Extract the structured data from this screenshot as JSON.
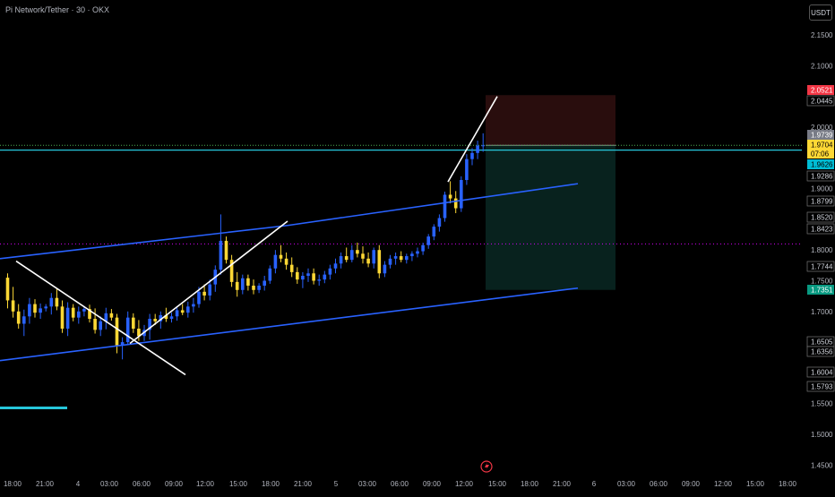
{
  "header": {
    "title": "Pi Network/Tether · 30 · OKX",
    "currency": "USDT"
  },
  "colors": {
    "up": "#2962ff",
    "down": "#fdd835",
    "channel": "#2962ff",
    "trendline": "#ffffff",
    "current_line": "#26c6da",
    "dotted_level": "#d500f9",
    "stop_zone": "#2b0e0e",
    "target_zone": "#082420",
    "stop_badge": "#f23645",
    "current_badge": "#fdd835",
    "cyan_badge": "#00bcd4",
    "teal_badge": "#089981",
    "grey_badge": "#787b86"
  },
  "chart_data": {
    "type": "candlestick",
    "y_ticks": [
      "2.1500",
      "2.1000",
      "2.0000",
      "1.9000",
      "1.8000",
      "1.7500",
      "1.7000",
      "1.5500",
      "1.5000",
      "1.4500"
    ],
    "x_ticks": [
      "18:00",
      "21:00",
      "4",
      "03:00",
      "06:00",
      "09:00",
      "12:00",
      "15:00",
      "18:00",
      "21:00",
      "5",
      "03:00",
      "06:00",
      "09:00",
      "12:00",
      "15:00",
      "18:00",
      "21:00",
      "6",
      "03:00",
      "06:00",
      "09:00",
      "12:00",
      "15:00",
      "18:00"
    ],
    "price_labels": [
      {
        "value": "2.0521",
        "style": "stop"
      },
      {
        "value": "2.0445",
        "style": "plain"
      },
      {
        "value": "1.9739",
        "style": "grey"
      },
      {
        "value": "1.9704",
        "style": "current"
      },
      {
        "value": "07:06",
        "style": "current"
      },
      {
        "value": "1.9626",
        "style": "cyan"
      },
      {
        "value": "1.9286",
        "style": "plain"
      },
      {
        "value": "1.8799",
        "style": "plain"
      },
      {
        "value": "1.8520",
        "style": "plain"
      },
      {
        "value": "1.8423",
        "style": "plain"
      },
      {
        "value": "1.7744",
        "style": "plain"
      },
      {
        "value": "1.7351",
        "style": "teal"
      },
      {
        "value": "1.6505",
        "style": "plain"
      },
      {
        "value": "1.6356",
        "style": "plain"
      },
      {
        "value": "1.6004",
        "style": "plain"
      },
      {
        "value": "1.5793",
        "style": "plain"
      }
    ],
    "ohlc": [
      [
        1.755,
        1.762,
        1.705,
        1.718
      ],
      [
        1.718,
        1.74,
        1.69,
        1.7
      ],
      [
        1.7,
        1.712,
        1.672,
        1.68
      ],
      [
        1.68,
        1.703,
        1.66,
        1.692
      ],
      [
        1.692,
        1.722,
        1.68,
        1.712
      ],
      [
        1.712,
        1.72,
        1.69,
        1.698
      ],
      [
        1.698,
        1.713,
        1.688,
        1.705
      ],
      [
        1.705,
        1.712,
        1.7,
        1.708
      ],
      [
        1.708,
        1.73,
        1.695,
        1.722
      ],
      [
        1.722,
        1.738,
        1.702,
        1.708
      ],
      [
        1.708,
        1.718,
        1.665,
        1.672
      ],
      [
        1.672,
        1.715,
        1.66,
        1.706
      ],
      [
        1.706,
        1.712,
        1.684,
        1.69
      ],
      [
        1.69,
        1.708,
        1.68,
        1.7
      ],
      [
        1.7,
        1.709,
        1.692,
        1.704
      ],
      [
        1.704,
        1.711,
        1.682,
        1.688
      ],
      [
        1.688,
        1.705,
        1.664,
        1.67
      ],
      [
        1.67,
        1.692,
        1.66,
        1.684
      ],
      [
        1.684,
        1.706,
        1.671,
        1.697
      ],
      [
        1.697,
        1.704,
        1.685,
        1.69
      ],
      [
        1.69,
        1.696,
        1.632,
        1.645
      ],
      [
        1.645,
        1.658,
        1.622,
        1.65
      ],
      [
        1.65,
        1.7,
        1.645,
        1.69
      ],
      [
        1.69,
        1.697,
        1.665,
        1.672
      ],
      [
        1.672,
        1.686,
        1.652,
        1.66
      ],
      [
        1.66,
        1.678,
        1.652,
        1.67
      ],
      [
        1.67,
        1.696,
        1.654,
        1.688
      ],
      [
        1.688,
        1.696,
        1.678,
        1.684
      ],
      [
        1.684,
        1.7,
        1.672,
        1.694
      ],
      [
        1.694,
        1.706,
        1.683,
        1.688
      ],
      [
        1.688,
        1.698,
        1.682,
        1.692
      ],
      [
        1.692,
        1.706,
        1.685,
        1.702
      ],
      [
        1.702,
        1.712,
        1.694,
        1.698
      ],
      [
        1.698,
        1.716,
        1.69,
        1.708
      ],
      [
        1.708,
        1.722,
        1.698,
        1.712
      ],
      [
        1.712,
        1.74,
        1.706,
        1.732
      ],
      [
        1.732,
        1.744,
        1.718,
        1.726
      ],
      [
        1.726,
        1.752,
        1.718,
        1.744
      ],
      [
        1.744,
        1.775,
        1.732,
        1.768
      ],
      [
        1.768,
        1.858,
        1.76,
        1.815
      ],
      [
        1.815,
        1.822,
        1.778,
        1.784
      ],
      [
        1.784,
        1.792,
        1.74,
        1.748
      ],
      [
        1.748,
        1.764,
        1.724,
        1.735
      ],
      [
        1.735,
        1.76,
        1.728,
        1.754
      ],
      [
        1.754,
        1.76,
        1.734,
        1.742
      ],
      [
        1.742,
        1.752,
        1.728,
        1.735
      ],
      [
        1.735,
        1.746,
        1.73,
        1.742
      ],
      [
        1.742,
        1.758,
        1.734,
        1.75
      ],
      [
        1.75,
        1.775,
        1.745,
        1.77
      ],
      [
        1.77,
        1.8,
        1.762,
        1.792
      ],
      [
        1.792,
        1.808,
        1.78,
        1.786
      ],
      [
        1.786,
        1.796,
        1.768,
        1.776
      ],
      [
        1.776,
        1.788,
        1.756,
        1.764
      ],
      [
        1.764,
        1.772,
        1.745,
        1.752
      ],
      [
        1.752,
        1.764,
        1.738,
        1.758
      ],
      [
        1.758,
        1.77,
        1.748,
        1.762
      ],
      [
        1.762,
        1.77,
        1.744,
        1.75
      ],
      [
        1.75,
        1.76,
        1.742,
        1.752
      ],
      [
        1.752,
        1.766,
        1.746,
        1.76
      ],
      [
        1.76,
        1.776,
        1.752,
        1.77
      ],
      [
        1.77,
        1.786,
        1.762,
        1.778
      ],
      [
        1.778,
        1.796,
        1.77,
        1.79
      ],
      [
        1.79,
        1.804,
        1.78,
        1.784
      ],
      [
        1.784,
        1.808,
        1.78,
        1.8
      ],
      [
        1.8,
        1.812,
        1.788,
        1.794
      ],
      [
        1.794,
        1.806,
        1.778,
        1.786
      ],
      [
        1.786,
        1.796,
        1.772,
        1.778
      ],
      [
        1.778,
        1.804,
        1.77,
        1.8
      ],
      [
        1.8,
        1.808,
        1.754,
        1.762
      ],
      [
        1.762,
        1.782,
        1.756,
        1.776
      ],
      [
        1.776,
        1.792,
        1.77,
        1.786
      ],
      [
        1.786,
        1.796,
        1.776,
        1.79
      ],
      [
        1.79,
        1.798,
        1.78,
        1.784
      ],
      [
        1.784,
        1.794,
        1.778,
        1.79
      ],
      [
        1.79,
        1.798,
        1.782,
        1.794
      ],
      [
        1.794,
        1.804,
        1.788,
        1.798
      ],
      [
        1.798,
        1.812,
        1.792,
        1.808
      ],
      [
        1.808,
        1.826,
        1.802,
        1.822
      ],
      [
        1.822,
        1.842,
        1.816,
        1.838
      ],
      [
        1.838,
        1.858,
        1.83,
        1.852
      ],
      [
        1.852,
        1.895,
        1.846,
        1.89
      ],
      [
        1.89,
        1.912,
        1.876,
        1.884
      ],
      [
        1.884,
        1.896,
        1.86,
        1.868
      ],
      [
        1.868,
        1.92,
        1.862,
        1.914
      ],
      [
        1.914,
        1.956,
        1.906,
        1.948
      ],
      [
        1.948,
        1.966,
        1.938,
        1.958
      ],
      [
        1.958,
        1.978,
        1.948,
        1.97
      ],
      [
        1.97,
        1.99,
        1.96,
        1.9704
      ]
    ],
    "trendlines": [
      {
        "kind": "channel",
        "from": [
          0,
          1.786
        ],
        "to": [
          321,
          1.84
        ]
      },
      {
        "kind": "channel",
        "from": [
          321,
          1.84
        ],
        "to": [
          645,
          1.908
        ]
      },
      {
        "kind": "channel",
        "from": [
          0,
          1.62
        ],
        "to": [
          645,
          1.738
        ]
      },
      {
        "kind": "white",
        "from": [
          18,
          1.782
        ],
        "to": [
          207,
          1.597
        ]
      },
      {
        "kind": "white",
        "from": [
          145,
          1.648
        ],
        "to": [
          321,
          1.847
        ]
      },
      {
        "kind": "white",
        "from": [
          500,
          1.911
        ],
        "to": [
          555,
          2.05
        ]
      }
    ],
    "position": {
      "entry": 1.9704,
      "stop": 2.0521,
      "target": 1.7351
    },
    "levels": {
      "current": 1.9626,
      "green": 1.9704,
      "dotted": 1.81,
      "cyan_short": 1.543
    },
    "grid": false
  }
}
